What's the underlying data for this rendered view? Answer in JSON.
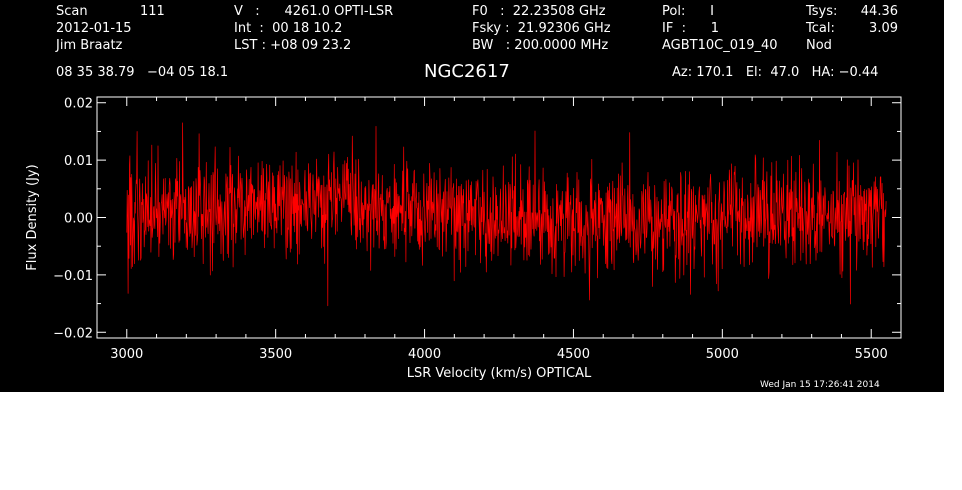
{
  "header": {
    "scan_label": "Scan",
    "scan_number": "111",
    "date": "2012-01-15",
    "observer": "Jim Braatz",
    "velocity": "V   :      4261.0 OPTI-LSR",
    "integration": "Int  :  00 18 10.2",
    "lst": "LST : +08 09 23.2",
    "f0": "F0   :  22.23508 GHz",
    "fsky": "Fsky :  21.92306 GHz",
    "bandwidth": "BW   : 200.0000 MHz",
    "pol": "Pol:      I",
    "if": "IF  :      1",
    "project": "AGBT10C_019_40",
    "tsys_label": "Tsys:",
    "tsys_value": "44.36",
    "tcal_label": "Tcal:",
    "tcal_value": "3.09",
    "mode": "Nod",
    "coordinates": "08 35 38.79   −04 05 18.1",
    "source": "NGC2617",
    "pointing": "Az: 170.1   El:  47.0   HA: −0.44",
    "timestamp": "Wed Jan 15 17:26:41 2014"
  },
  "colors": {
    "background": "#000000",
    "axes": "#ffffff",
    "trace": "#ff0000"
  },
  "chart_data": {
    "type": "line",
    "xlabel": "LSR Velocity (km/s) OPTICAL",
    "ylabel": "Flux Density (Jy)",
    "xlim": [
      2900,
      5600
    ],
    "ylim": [
      -0.021,
      0.021
    ],
    "x_ticks": [
      3000,
      3500,
      4000,
      4500,
      5000,
      5500
    ],
    "x_tick_labels": [
      "3000",
      "3500",
      "4000",
      "4500",
      "5000",
      "5500"
    ],
    "y_ticks": [
      -0.02,
      -0.01,
      0.0,
      0.01,
      0.02
    ],
    "y_tick_labels": [
      "−0.02",
      "−0.01",
      "0.00",
      "0.01",
      "0.02"
    ],
    "grid": false,
    "series": [
      {
        "x_range": [
          3000,
          5550
        ],
        "channel_spacing": 1.5,
        "rms_noise": 0.0045,
        "mean_level": 0.0,
        "max_value": 0.0165,
        "min_value": -0.0165
      }
    ]
  }
}
